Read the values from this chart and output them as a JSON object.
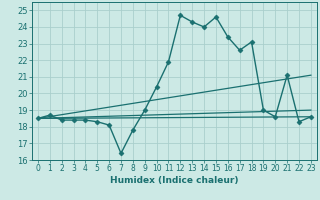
{
  "title": "",
  "xlabel": "Humidex (Indice chaleur)",
  "ylabel": "",
  "xlim": [
    -0.5,
    23.5
  ],
  "ylim": [
    16,
    25.5
  ],
  "yticks": [
    16,
    17,
    18,
    19,
    20,
    21,
    22,
    23,
    24,
    25
  ],
  "xticks": [
    0,
    1,
    2,
    3,
    4,
    5,
    6,
    7,
    8,
    9,
    10,
    11,
    12,
    13,
    14,
    15,
    16,
    17,
    18,
    19,
    20,
    21,
    22,
    23
  ],
  "bg_color": "#cce9e5",
  "grid_color": "#aacfcc",
  "line_color": "#1a7070",
  "lines": [
    {
      "x": [
        0,
        1,
        2,
        3,
        4,
        5,
        6,
        7,
        8,
        9,
        10,
        11,
        12,
        13,
        14,
        15,
        16,
        17,
        18,
        19,
        20,
        21,
        22,
        23
      ],
      "y": [
        18.5,
        18.7,
        18.4,
        18.4,
        18.4,
        18.3,
        18.1,
        16.4,
        17.8,
        19.0,
        20.4,
        21.9,
        24.7,
        24.3,
        24.0,
        24.6,
        23.4,
        22.6,
        23.1,
        19.0,
        18.6,
        21.1,
        18.3,
        18.6
      ],
      "marker": "D",
      "markersize": 2.5,
      "linewidth": 1.0
    },
    {
      "x": [
        0,
        23
      ],
      "y": [
        18.5,
        19.0
      ],
      "marker": null,
      "linewidth": 0.9
    },
    {
      "x": [
        0,
        23
      ],
      "y": [
        18.5,
        21.1
      ],
      "marker": null,
      "linewidth": 0.9
    },
    {
      "x": [
        0,
        23
      ],
      "y": [
        18.5,
        18.6
      ],
      "marker": null,
      "linewidth": 0.9
    }
  ]
}
